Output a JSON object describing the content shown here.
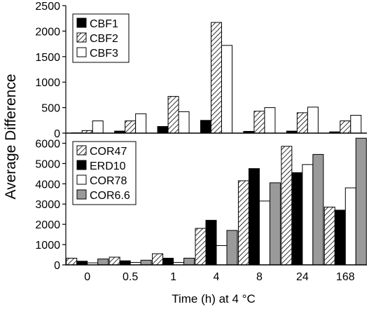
{
  "figure": {
    "ylabel": "Average Difference",
    "xlabel": "Time (h) at 4 °C"
  },
  "chart_data": [
    {
      "type": "bar",
      "categories": [
        "0",
        "0.5",
        "1",
        "4",
        "8",
        "24",
        "168"
      ],
      "ylim": [
        0,
        2500
      ],
      "yticks": [
        0,
        500,
        1000,
        1500,
        2000,
        2500
      ],
      "legend_position": "top-left",
      "series": [
        {
          "name": "CBF1",
          "style": "solid-black",
          "values": [
            5,
            40,
            130,
            250,
            35,
            40,
            25
          ]
        },
        {
          "name": "CBF2",
          "style": "hatched",
          "values": [
            50,
            240,
            720,
            2170,
            430,
            400,
            240
          ]
        },
        {
          "name": "CBF3",
          "style": "white",
          "values": [
            240,
            380,
            420,
            1720,
            500,
            510,
            350
          ]
        }
      ]
    },
    {
      "type": "bar",
      "categories": [
        "0",
        "0.5",
        "1",
        "4",
        "8",
        "24",
        "168"
      ],
      "ylim": [
        0,
        6500
      ],
      "yticks": [
        0,
        1000,
        2000,
        3000,
        4000,
        5000,
        6000
      ],
      "legend_position": "top-left",
      "series": [
        {
          "name": "COR47",
          "style": "hatched",
          "values": [
            330,
            380,
            550,
            1800,
            4150,
            5850,
            2850
          ]
        },
        {
          "name": "ERD10",
          "style": "solid-black",
          "values": [
            180,
            200,
            330,
            2200,
            4750,
            4550,
            2700
          ]
        },
        {
          "name": "COR78",
          "style": "white",
          "values": [
            100,
            120,
            120,
            950,
            3150,
            4950,
            3800
          ]
        },
        {
          "name": "COR6.6",
          "style": "gray",
          "values": [
            290,
            230,
            330,
            1700,
            4050,
            5450,
            6250
          ]
        }
      ]
    }
  ],
  "colors": {
    "solid-black": "#000000",
    "white": "#ffffff",
    "gray": "#9a9a9a",
    "axis": "#000000"
  }
}
